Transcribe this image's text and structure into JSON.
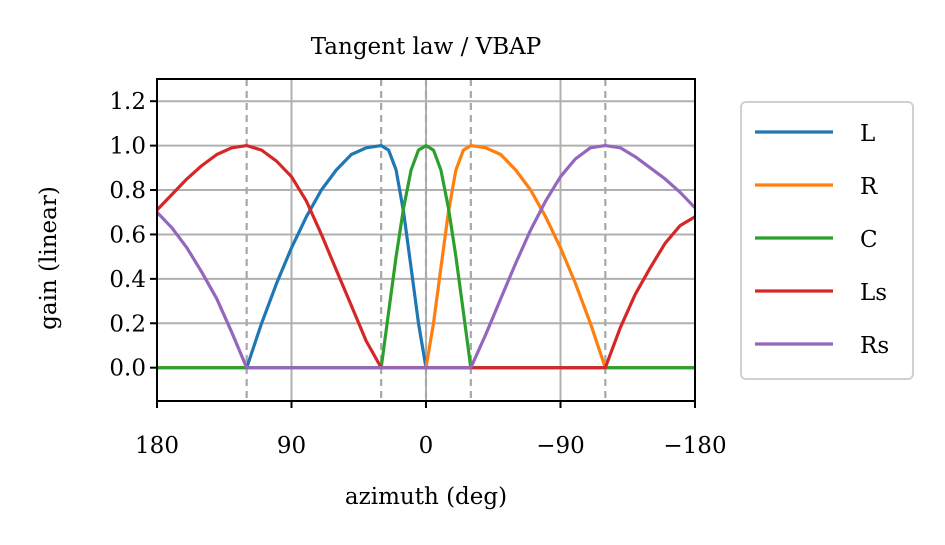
{
  "chart_data": {
    "type": "line",
    "title": "Tangent law / VBAP",
    "xlabel": "azimuth (deg)",
    "ylabel": "gain (linear)",
    "xlim": [
      180,
      -180
    ],
    "ylim": [
      -0.15,
      1.3
    ],
    "x_ticks": [
      180,
      90,
      0,
      -90,
      -180
    ],
    "x_tick_labels": [
      "180",
      "90",
      "0",
      "−90",
      "−180"
    ],
    "y_ticks": [
      0.0,
      0.2,
      0.4,
      0.6,
      0.8,
      1.0,
      1.2
    ],
    "y_tick_labels": [
      "0.0",
      "0.2",
      "0.4",
      "0.6",
      "0.8",
      "1.0",
      "1.2"
    ],
    "grid": true,
    "speaker_azimuths": [
      120,
      30,
      0,
      -30,
      -120
    ],
    "legend_position": "right",
    "series": [
      {
        "name": "L",
        "color": "#1f77b4",
        "x": [
          180,
          120,
          110,
          100,
          90,
          80,
          70,
          60,
          50,
          40,
          30,
          25,
          20,
          15,
          10,
          5,
          0,
          -180
        ],
        "y": [
          0,
          0,
          0.2,
          0.38,
          0.54,
          0.68,
          0.8,
          0.89,
          0.96,
          0.99,
          1.0,
          0.98,
          0.89,
          0.7,
          0.45,
          0.2,
          0,
          0
        ]
      },
      {
        "name": "R",
        "color": "#ff7f0e",
        "x": [
          180,
          0,
          -5,
          -10,
          -15,
          -20,
          -25,
          -30,
          -40,
          -50,
          -60,
          -70,
          -80,
          -90,
          -100,
          -110,
          -120,
          -180
        ],
        "y": [
          0,
          0,
          0.2,
          0.45,
          0.7,
          0.89,
          0.98,
          1.0,
          0.99,
          0.96,
          0.89,
          0.8,
          0.68,
          0.54,
          0.38,
          0.2,
          0,
          0
        ]
      },
      {
        "name": "C",
        "color": "#2ca02c",
        "x": [
          180,
          30,
          25,
          20,
          15,
          10,
          5,
          0,
          -5,
          -10,
          -15,
          -20,
          -25,
          -30,
          -180
        ],
        "y": [
          0,
          0,
          0.25,
          0.5,
          0.72,
          0.89,
          0.98,
          1.0,
          0.98,
          0.89,
          0.72,
          0.5,
          0.25,
          0,
          0
        ]
      },
      {
        "name": "Ls",
        "color": "#d62728",
        "x": [
          180,
          170,
          160,
          150,
          140,
          130,
          120,
          110,
          100,
          90,
          80,
          70,
          60,
          50,
          40,
          30,
          0,
          -120,
          -130,
          -140,
          -150,
          -160,
          -170,
          -180
        ],
        "y": [
          0.71,
          0.78,
          0.85,
          0.91,
          0.96,
          0.99,
          1.0,
          0.98,
          0.93,
          0.86,
          0.75,
          0.6,
          0.44,
          0.28,
          0.12,
          0,
          0,
          0,
          0.18,
          0.33,
          0.45,
          0.56,
          0.64,
          0.68
        ]
      },
      {
        "name": "Rs",
        "color": "#9467bd",
        "x": [
          180,
          170,
          160,
          150,
          140,
          130,
          120,
          0,
          -30,
          -40,
          -50,
          -60,
          -70,
          -80,
          -90,
          -100,
          -110,
          -120,
          -130,
          -140,
          -150,
          -160,
          -170,
          -180
        ],
        "y": [
          0.7,
          0.63,
          0.54,
          0.43,
          0.31,
          0.16,
          0,
          0,
          0,
          0.15,
          0.31,
          0.47,
          0.62,
          0.75,
          0.86,
          0.94,
          0.99,
          1.0,
          0.99,
          0.95,
          0.9,
          0.85,
          0.79,
          0.72
        ]
      }
    ]
  }
}
